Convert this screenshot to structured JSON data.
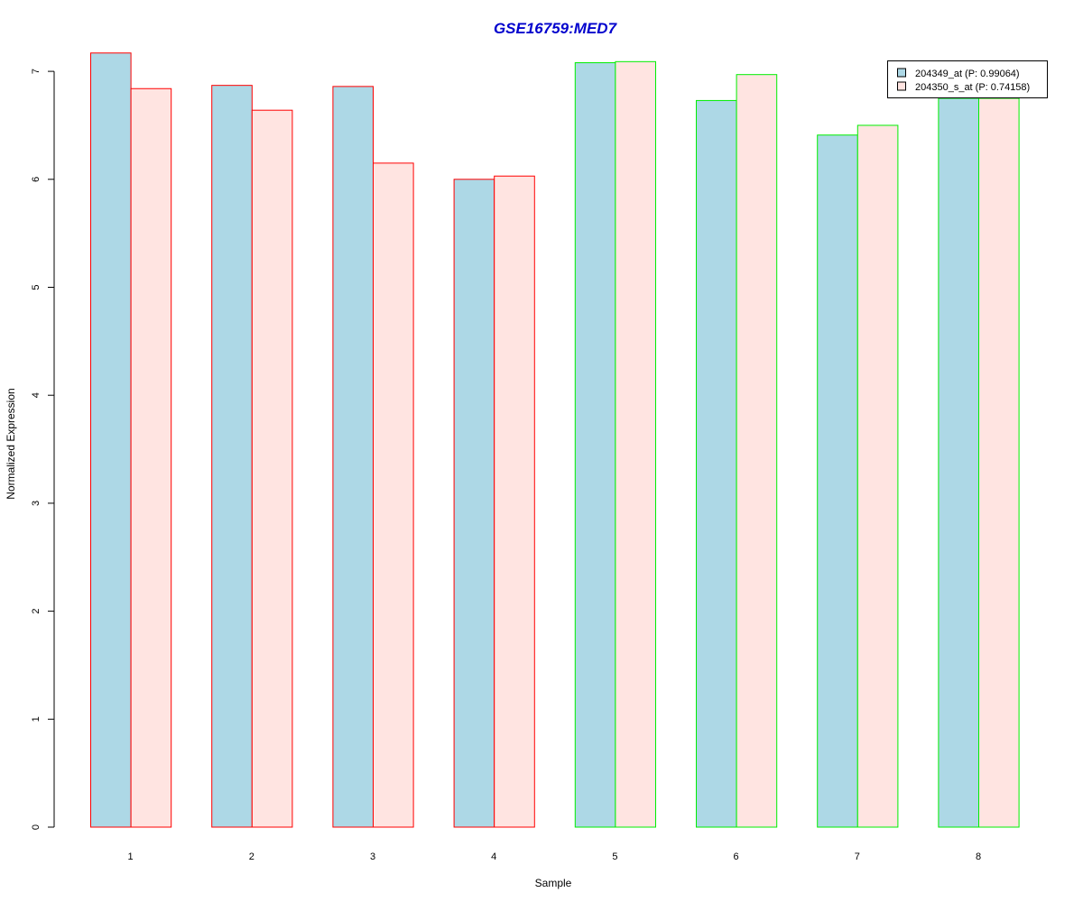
{
  "chart_data": {
    "type": "bar",
    "title": "GSE16759:MED7",
    "xlabel": "Sample",
    "ylabel": "Normalized Expression",
    "categories": [
      "1",
      "2",
      "3",
      "4",
      "5",
      "6",
      "7",
      "8"
    ],
    "yticks": [
      "0",
      "1",
      "2",
      "3",
      "4",
      "5",
      "6",
      "7"
    ],
    "ylim": [
      0,
      7.3
    ],
    "series": [
      {
        "name": "204349_at (P: 0.99064)",
        "fill": "#add8e6",
        "values": [
          7.17,
          6.87,
          6.86,
          6.0,
          7.08,
          6.73,
          6.41,
          6.75
        ]
      },
      {
        "name": "204350_s_at (P: 0.74158)",
        "fill": "#ffe4e1",
        "values": [
          6.84,
          6.64,
          6.15,
          6.03,
          7.09,
          6.97,
          6.5,
          6.75
        ]
      }
    ],
    "group_border_colors": [
      "#ff0000",
      "#ff0000",
      "#ff0000",
      "#ff0000",
      "#00ee00",
      "#00ee00",
      "#00ee00",
      "#00ee00"
    ],
    "title_color": "#0000cd",
    "grid": false,
    "legend_position": "top-right"
  }
}
